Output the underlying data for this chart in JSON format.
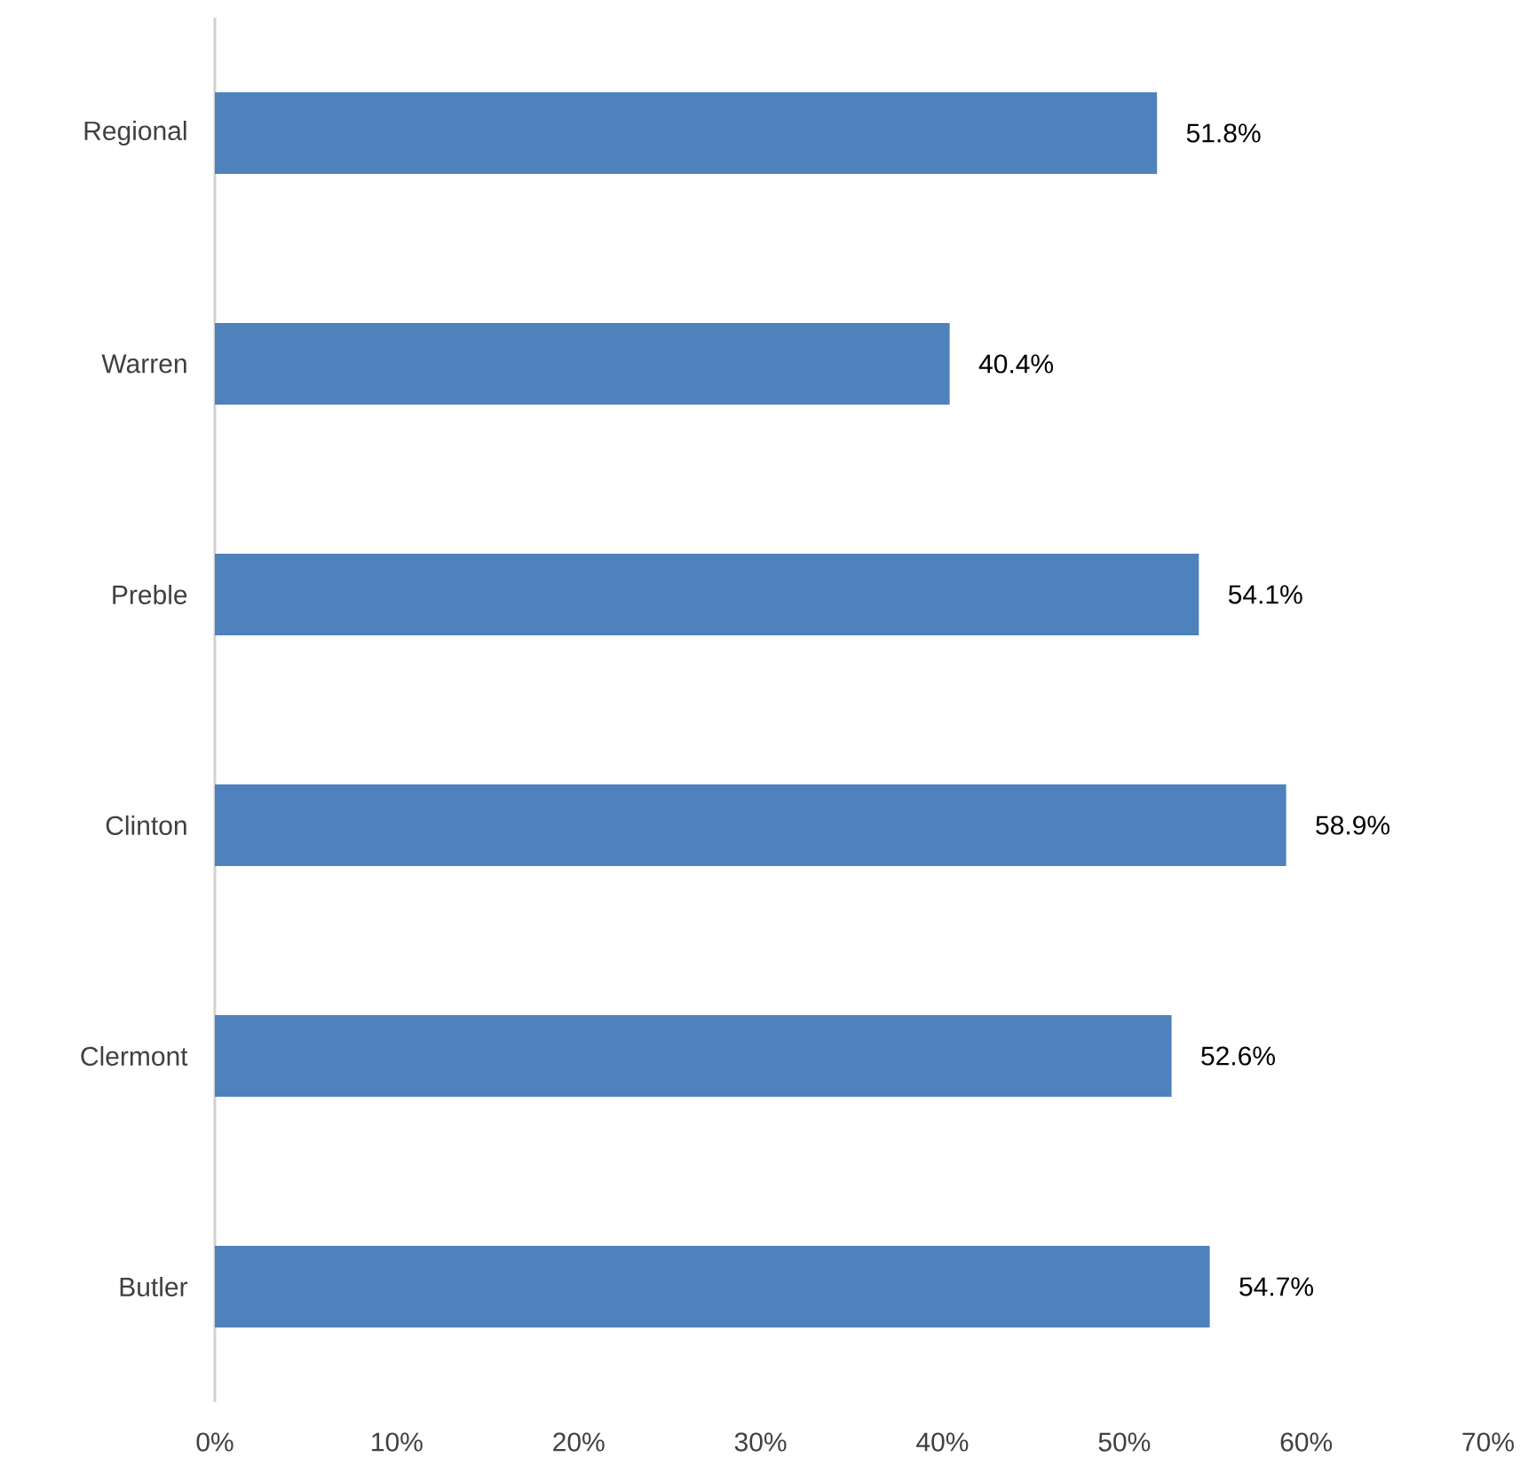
{
  "chart_data": {
    "type": "bar",
    "orientation": "horizontal",
    "categories": [
      "Regional",
      "Warren",
      "Preble",
      "Clinton",
      "Clermont",
      "Butler"
    ],
    "values": [
      51.8,
      40.4,
      54.1,
      58.9,
      52.6,
      54.7
    ],
    "value_labels": [
      "51.8%",
      "40.4%",
      "54.1%",
      "58.9%",
      "52.6%",
      "54.7%"
    ],
    "color": "#4f81bd",
    "xlim": [
      0,
      70
    ],
    "xticks": [
      {
        "value": 0,
        "label": "0%"
      },
      {
        "value": 10,
        "label": "10%"
      },
      {
        "value": 20,
        "label": "20%"
      },
      {
        "value": 30,
        "label": "30%"
      },
      {
        "value": 40,
        "label": "40%"
      },
      {
        "value": 50,
        "label": "50%"
      },
      {
        "value": 60,
        "label": "60%"
      },
      {
        "value": 70,
        "label": "70%"
      }
    ]
  }
}
